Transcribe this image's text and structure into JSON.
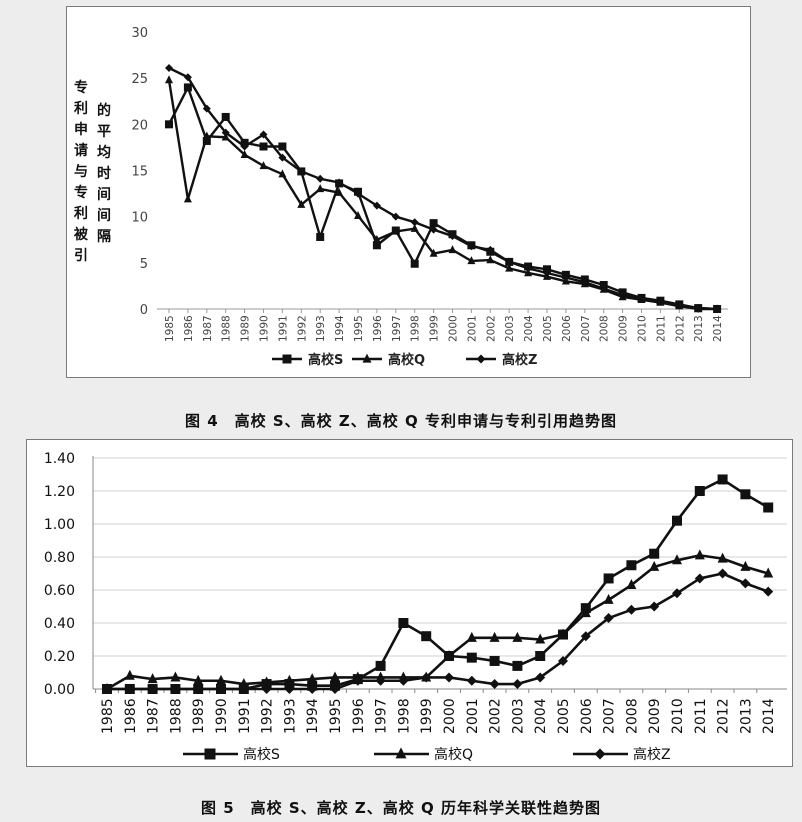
{
  "figure4_caption": "图 4　高校 S、高校 Z、高校 Q 专利申请与专利引用趋势图",
  "figure5_caption": "图 5　高校 S、高校 Z、高校 Q 历年科学关联性趋势图",
  "chart_data": [
    {
      "type": "line",
      "ylabel_col1": "专利申请与专利被引",
      "ylabel_col2": "的平均时间间隔",
      "ylim": [
        0,
        30
      ],
      "yticks": [
        "0",
        "5",
        "10",
        "15",
        "20",
        "25",
        "30"
      ],
      "grid": false,
      "legend_position": "bottom",
      "x": [
        "1985",
        "1986",
        "1987",
        "1988",
        "1989",
        "1990",
        "1991",
        "1992",
        "1993",
        "1994",
        "1995",
        "1996",
        "1997",
        "1998",
        "1999",
        "2000",
        "2001",
        "2002",
        "2003",
        "2004",
        "2005",
        "2006",
        "2007",
        "2008",
        "2009",
        "2010",
        "2011",
        "2012",
        "2013",
        "2014"
      ],
      "series": [
        {
          "name": "高校S",
          "marker": "square",
          "values": [
            20,
            24,
            18.2,
            20.8,
            18,
            17.6,
            17.6,
            14.9,
            7.8,
            13.6,
            12.7,
            6.9,
            8.5,
            4.9,
            9.3,
            8.1,
            6.9,
            6.2,
            5.1,
            4.6,
            4.3,
            3.7,
            3.2,
            2.6,
            1.8,
            1.2,
            0.9,
            0.5,
            0.1,
            0
          ]
        },
        {
          "name": "高校Q",
          "marker": "triangle",
          "values": [
            24.8,
            11.9,
            18.7,
            18.6,
            16.7,
            15.5,
            14.6,
            11.3,
            13,
            12.6,
            10.1,
            7.5,
            8.4,
            8.7,
            6,
            6.4,
            5.2,
            5.3,
            4.4,
            3.9,
            3.5,
            3,
            2.7,
            2.1,
            1.3,
            1,
            0.7,
            0.3,
            0,
            0
          ]
        },
        {
          "name": "高校Z",
          "marker": "diamond",
          "values": [
            26.1,
            25.1,
            21.7,
            19.1,
            17.6,
            18.9,
            16.4,
            14.9,
            14.1,
            13.7,
            12.5,
            11.2,
            10,
            9.4,
            8.6,
            7.9,
            6.8,
            6.4,
            5.1,
            4.4,
            3.9,
            3.4,
            2.9,
            2.2,
            1.5,
            1.1,
            0.8,
            0.4,
            0.1,
            0
          ]
        }
      ]
    },
    {
      "type": "line",
      "ylim": [
        0,
        1.4
      ],
      "yticks": [
        "0.00",
        "0.20",
        "0.40",
        "0.60",
        "0.80",
        "1.00",
        "1.20",
        "1.40"
      ],
      "grid": true,
      "legend_position": "bottom",
      "x": [
        "1985",
        "1986",
        "1987",
        "1988",
        "1989",
        "1990",
        "1991",
        "1992",
        "1993",
        "1994",
        "1995",
        "1996",
        "1997",
        "1998",
        "1999",
        "2000",
        "2001",
        "2002",
        "2003",
        "2004",
        "2005",
        "2006",
        "2007",
        "2008",
        "2009",
        "2010",
        "2011",
        "2012",
        "2013",
        "2014"
      ],
      "series": [
        {
          "name": "高校S",
          "marker": "square",
          "values": [
            0,
            0,
            0,
            0,
            0,
            0,
            0,
            0.03,
            0.03,
            0.02,
            0.02,
            0.06,
            0.14,
            0.4,
            0.32,
            0.2,
            0.19,
            0.17,
            0.14,
            0.2,
            0.33,
            0.49,
            0.67,
            0.75,
            0.82,
            1.02,
            1.2,
            1.27,
            1.18,
            1.1
          ]
        },
        {
          "name": "高校Q",
          "marker": "triangle",
          "values": [
            0,
            0.08,
            0.06,
            0.07,
            0.05,
            0.05,
            0.03,
            0.04,
            0.05,
            0.06,
            0.07,
            0.07,
            0.07,
            0.07,
            0.07,
            0.2,
            0.31,
            0.31,
            0.31,
            0.3,
            0.33,
            0.46,
            0.54,
            0.63,
            0.74,
            0.78,
            0.81,
            0.79,
            0.74,
            0.7
          ]
        },
        {
          "name": "高校Z",
          "marker": "diamond",
          "values": [
            0,
            0,
            0,
            0,
            0,
            0,
            0,
            0,
            0,
            0,
            0,
            0.05,
            0.05,
            0.05,
            0.07,
            0.07,
            0.05,
            0.03,
            0.03,
            0.07,
            0.17,
            0.32,
            0.43,
            0.48,
            0.5,
            0.58,
            0.67,
            0.7,
            0.64,
            0.59
          ]
        }
      ]
    }
  ]
}
